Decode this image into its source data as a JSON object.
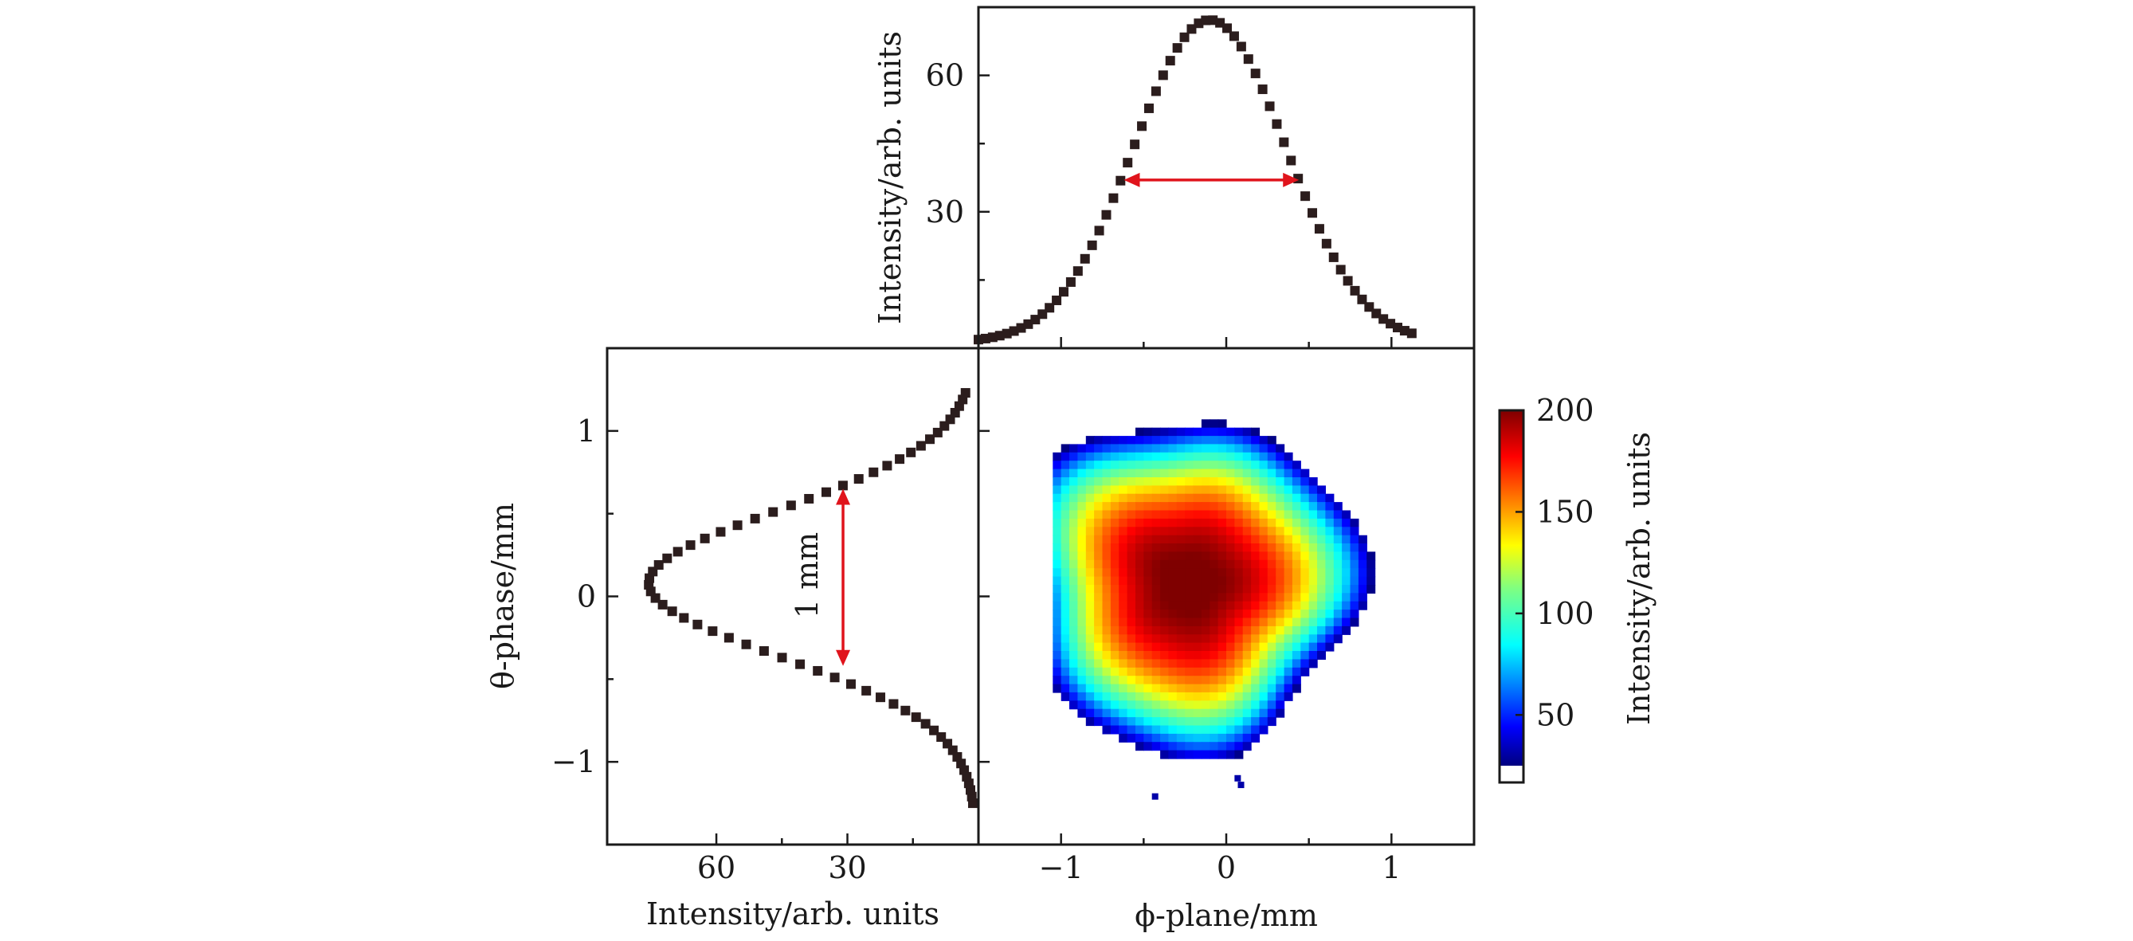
{
  "colors": {
    "points": "#2b1d1d",
    "arrow": "#e0141c",
    "frame": "#1a1a1a"
  },
  "chart_data": [
    {
      "id": "top-profile",
      "type": "scatter",
      "xlabel": "",
      "ylabel": "Intensity/arb. units",
      "xlim": [
        -1.5,
        1.5
      ],
      "ylim": [
        0,
        75
      ],
      "y_ticks": [
        "30",
        "60"
      ],
      "y_tick_values": [
        30,
        60
      ],
      "gaussian_fit_of_points": {
        "peak": 71,
        "center_mm": -0.1,
        "sigma_mm": 0.46,
        "baseline": 1.2
      },
      "annotation": {
        "type": "double-arrow",
        "x_from": -0.62,
        "x_to": 0.44,
        "y": 37
      }
    },
    {
      "id": "left-profile",
      "type": "scatter",
      "xlabel": "Intensity/arb. units",
      "ylabel": "θ-phase/mm",
      "xlim_reversed": [
        85,
        0
      ],
      "ylim": [
        -1.5,
        1.5
      ],
      "x_ticks": [
        "60",
        "30"
      ],
      "x_tick_values": [
        60,
        30
      ],
      "y_ticks": [
        "1",
        "0",
        "−1"
      ],
      "y_tick_values": [
        1,
        0,
        -1
      ],
      "gaussian_fit_of_points": {
        "peak": 75,
        "center_mm": 0.08,
        "sigma_mm": 0.44,
        "baseline": 0.5
      },
      "annotation": {
        "type": "double-arrow",
        "y_from": 0.65,
        "y_to": -0.42,
        "x": 31,
        "label": "1 mm"
      }
    },
    {
      "id": "heatmap",
      "type": "heatmap",
      "xlabel": "ϕ-plane/mm",
      "ylabel": "",
      "xlim": [
        -1.5,
        1.5
      ],
      "ylim": [
        -1.5,
        1.5
      ],
      "x_ticks": [
        "−1",
        "0",
        "1"
      ],
      "x_tick_values": [
        -1,
        0,
        1
      ],
      "peak_center_mm": [
        -0.25,
        0.1
      ],
      "spot_extent_mm": {
        "x": [
          -1.05,
          1.0
        ],
        "y": [
          -0.98,
          1.17
        ]
      },
      "colorbar": {
        "label": "Intensity/arb. units",
        "range": [
          25,
          200
        ],
        "ticks": [
          "50",
          "100",
          "150",
          "200"
        ],
        "tick_values": [
          50,
          100,
          150,
          200
        ]
      }
    }
  ]
}
